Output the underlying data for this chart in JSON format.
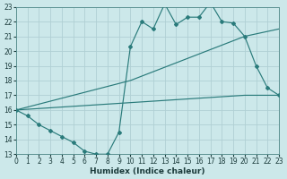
{
  "xlabel": "Humidex (Indice chaleur)",
  "xlim": [
    0,
    23
  ],
  "ylim": [
    13,
    23
  ],
  "xticks": [
    0,
    1,
    2,
    3,
    4,
    5,
    6,
    7,
    8,
    9,
    10,
    11,
    12,
    13,
    14,
    15,
    16,
    17,
    18,
    19,
    20,
    21,
    22,
    23
  ],
  "yticks": [
    13,
    14,
    15,
    16,
    17,
    18,
    19,
    20,
    21,
    22,
    23
  ],
  "bg_color": "#cce8ea",
  "grid_color": "#b0d0d4",
  "line_color": "#2a7b7b",
  "line1_x": [
    0,
    1,
    2,
    3,
    4,
    5,
    6,
    7,
    8,
    9,
    10,
    11,
    12,
    13,
    14,
    15,
    16,
    17,
    18,
    19,
    20,
    21,
    22,
    23
  ],
  "line1_y": [
    16.0,
    15.6,
    15.0,
    14.6,
    14.2,
    13.8,
    13.2,
    13.0,
    13.0,
    14.5,
    20.3,
    22.0,
    21.5,
    23.2,
    21.8,
    22.3,
    22.3,
    23.3,
    22.0,
    21.9,
    21.0,
    19.0,
    17.5,
    17.0
  ],
  "line2_x": [
    0,
    10,
    20,
    23
  ],
  "line2_y": [
    16.0,
    18.0,
    21.0,
    21.5
  ],
  "line3_x": [
    0,
    10,
    20,
    23
  ],
  "line3_y": [
    16.0,
    16.5,
    17.0,
    17.0
  ],
  "tick_fontsize": 5.5,
  "xlabel_fontsize": 6.5
}
